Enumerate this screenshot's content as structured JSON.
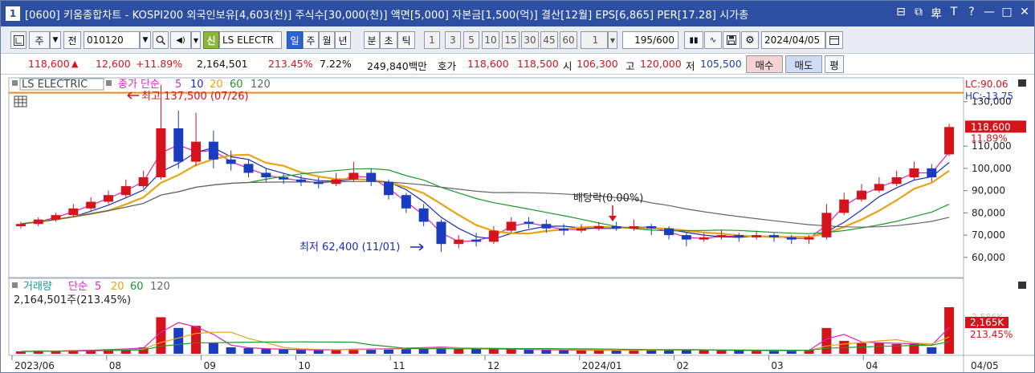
{
  "window": {
    "number": "1",
    "title": "[0600] 키움종합차트 - KOSPI200 외국인보유[4,603(천)] 주식수[30,000(천)] 액면[5,000] 자본금[1,500(억)] 결산[12월] EPS[6,865] PER[17.28] 시가총",
    "buttons": [
      "⊟",
      "⧉",
      "卑",
      "T",
      "?",
      "—",
      "□",
      "✕"
    ]
  },
  "toolbar": {
    "period_label": "주",
    "prev_label": "전",
    "code": "010120",
    "badge": "신",
    "stock_name": "LS ELECTR",
    "period_buttons": [
      "일",
      "주",
      "월",
      "년",
      "분",
      "초",
      "틱"
    ],
    "selected_period": "일",
    "interval_buttons": [
      "1",
      "3",
      "5",
      "10",
      "15",
      "30",
      "45",
      "60"
    ],
    "interval_value": "1",
    "count": "195/600",
    "date": "2024/04/05"
  },
  "quote": {
    "price": "118,600",
    "change": "12,600",
    "change_pct": "+11.89%",
    "volume": "2,164,501",
    "volume_ratio": "213.45%",
    "turnover": "7.22%",
    "amount": "249,840백만",
    "ask_label": "호가",
    "ask": "118,600",
    "bid": "118,500",
    "open_label": "시",
    "open": "106,300",
    "high_label": "고",
    "high": "120,000",
    "low_label": "저",
    "low": "105,500",
    "buy_label": "매수",
    "sell_label": "매도",
    "eval_label": "평"
  },
  "price_panel": {
    "stock_label": "LS ELECTRIC",
    "ma_title": "종가 단순",
    "ma_periods": [
      "5",
      "10",
      "20",
      "60",
      "120"
    ],
    "high_note": "최고 137,500 (07/26)",
    "low_note": "최저 62,400 (11/01)",
    "dividend_note": "배당락(0.00%)",
    "lc": "LC:90.06",
    "hc": "HC:-13.75",
    "last_price_tag": "118,600",
    "last_pct_tag": "11.89%"
  },
  "volume_panel": {
    "title": "거래량",
    "ma_title": "단순",
    "ma_periods": [
      "5",
      "20",
      "60",
      "120"
    ],
    "last_volume": "2,164,501주(213.45%)",
    "last_volume_tag": "2,165K",
    "last_pct_tag": "213.45%",
    "axis_label": "2,586K"
  },
  "colors": {
    "up": "#d4141a",
    "down": "#1a3cbf",
    "ma5": "#e020c0",
    "ma10": "#1c2fb0",
    "ma20": "#e8a415",
    "ma60": "#1a9a2a",
    "ma120": "#666666",
    "resistance": "#f08a1c"
  },
  "chart_data": {
    "type": "candlestick",
    "x_ticks": [
      "2023/06",
      "08",
      "09",
      "10",
      "11",
      "12",
      "2024/01",
      "02",
      "03",
      "04"
    ],
    "right_tick": "04/05",
    "y_ticks": [
      130000,
      110000,
      100000,
      90000,
      80000,
      70000,
      60000
    ],
    "y_tick_labels": [
      "130,000",
      "110,000",
      "100,000",
      "90,000",
      "80,000",
      "70,000",
      "60,000"
    ],
    "ylim": [
      52000,
      140000
    ],
    "resistance_level": 134000,
    "weeks": [
      {
        "o": 74000,
        "c": 75000,
        "h": 76000,
        "l": 73000,
        "v": 110
      },
      {
        "o": 75000,
        "c": 77000,
        "h": 78000,
        "l": 74000,
        "v": 120
      },
      {
        "o": 77000,
        "c": 79000,
        "h": 80000,
        "l": 76000,
        "v": 130
      },
      {
        "o": 79000,
        "c": 82000,
        "h": 84000,
        "l": 78000,
        "v": 160
      },
      {
        "o": 82000,
        "c": 85000,
        "h": 87000,
        "l": 81000,
        "v": 170
      },
      {
        "o": 85000,
        "c": 88000,
        "h": 90000,
        "l": 84000,
        "v": 210
      },
      {
        "o": 88000,
        "c": 92000,
        "h": 95000,
        "l": 87000,
        "v": 240
      },
      {
        "o": 92000,
        "c": 96000,
        "h": 99000,
        "l": 91000,
        "v": 300
      },
      {
        "o": 96000,
        "c": 118000,
        "h": 137500,
        "l": 95000,
        "v": 1700
      },
      {
        "o": 118000,
        "c": 103000,
        "h": 126000,
        "l": 100000,
        "v": 1200
      },
      {
        "o": 103000,
        "c": 112000,
        "h": 125000,
        "l": 101000,
        "v": 1300
      },
      {
        "o": 112000,
        "c": 104000,
        "h": 117000,
        "l": 100000,
        "v": 500
      },
      {
        "o": 104000,
        "c": 102000,
        "h": 108000,
        "l": 99000,
        "v": 300
      },
      {
        "o": 102000,
        "c": 98000,
        "h": 104000,
        "l": 96000,
        "v": 260
      },
      {
        "o": 98000,
        "c": 96000,
        "h": 100000,
        "l": 94000,
        "v": 220
      },
      {
        "o": 96000,
        "c": 95000,
        "h": 98000,
        "l": 93000,
        "v": 200
      },
      {
        "o": 95000,
        "c": 94000,
        "h": 97000,
        "l": 92000,
        "v": 180
      },
      {
        "o": 94000,
        "c": 93000,
        "h": 96000,
        "l": 91000,
        "v": 170
      },
      {
        "o": 93000,
        "c": 95000,
        "h": 98000,
        "l": 92000,
        "v": 190
      },
      {
        "o": 95000,
        "c": 98000,
        "h": 103000,
        "l": 94000,
        "v": 230
      },
      {
        "o": 98000,
        "c": 94000,
        "h": 100000,
        "l": 92000,
        "v": 210
      },
      {
        "o": 94000,
        "c": 88000,
        "h": 95000,
        "l": 86000,
        "v": 250
      },
      {
        "o": 88000,
        "c": 82000,
        "h": 89000,
        "l": 80000,
        "v": 270
      },
      {
        "o": 82000,
        "c": 76000,
        "h": 84000,
        "l": 74000,
        "v": 300
      },
      {
        "o": 76000,
        "c": 66000,
        "h": 77000,
        "l": 62400,
        "v": 320
      },
      {
        "o": 66000,
        "c": 68000,
        "h": 70000,
        "l": 64000,
        "v": 240
      },
      {
        "o": 68000,
        "c": 67000,
        "h": 71000,
        "l": 65000,
        "v": 220
      },
      {
        "o": 67000,
        "c": 72000,
        "h": 74000,
        "l": 66000,
        "v": 230
      },
      {
        "o": 72000,
        "c": 76000,
        "h": 78000,
        "l": 71000,
        "v": 210
      },
      {
        "o": 76000,
        "c": 75000,
        "h": 78000,
        "l": 73000,
        "v": 190
      },
      {
        "o": 75000,
        "c": 73000,
        "h": 77000,
        "l": 71000,
        "v": 180
      },
      {
        "o": 73000,
        "c": 72000,
        "h": 75000,
        "l": 70000,
        "v": 170
      },
      {
        "o": 72000,
        "c": 73000,
        "h": 75000,
        "l": 71000,
        "v": 160
      },
      {
        "o": 73000,
        "c": 74000,
        "h": 76000,
        "l": 72000,
        "v": 170
      },
      {
        "o": 74000,
        "c": 73000,
        "h": 76000,
        "l": 72000,
        "v": 160
      },
      {
        "o": 73000,
        "c": 74000,
        "h": 77000,
        "l": 72000,
        "v": 170
      },
      {
        "o": 74000,
        "c": 73000,
        "h": 75000,
        "l": 70000,
        "v": 180
      },
      {
        "o": 73000,
        "c": 70000,
        "h": 74000,
        "l": 68000,
        "v": 190
      },
      {
        "o": 70000,
        "c": 68000,
        "h": 71000,
        "l": 65000,
        "v": 200
      },
      {
        "o": 68000,
        "c": 69000,
        "h": 71000,
        "l": 67000,
        "v": 170
      },
      {
        "o": 69000,
        "c": 70000,
        "h": 72000,
        "l": 68000,
        "v": 160
      },
      {
        "o": 70000,
        "c": 69000,
        "h": 71000,
        "l": 67000,
        "v": 150
      },
      {
        "o": 69000,
        "c": 70000,
        "h": 72000,
        "l": 68000,
        "v": 150
      },
      {
        "o": 70000,
        "c": 69000,
        "h": 71000,
        "l": 67000,
        "v": 140
      },
      {
        "o": 69000,
        "c": 68000,
        "h": 70000,
        "l": 66000,
        "v": 150
      },
      {
        "o": 68000,
        "c": 69000,
        "h": 70000,
        "l": 66000,
        "v": 170
      },
      {
        "o": 69000,
        "c": 80000,
        "h": 84000,
        "l": 68000,
        "v": 1200
      },
      {
        "o": 80000,
        "c": 86000,
        "h": 89000,
        "l": 79000,
        "v": 600
      },
      {
        "o": 86000,
        "c": 90000,
        "h": 93000,
        "l": 85000,
        "v": 500
      },
      {
        "o": 90000,
        "c": 93000,
        "h": 96000,
        "l": 89000,
        "v": 520
      },
      {
        "o": 93000,
        "c": 96000,
        "h": 99000,
        "l": 92000,
        "v": 450
      },
      {
        "o": 96000,
        "c": 100000,
        "h": 103000,
        "l": 95000,
        "v": 480
      },
      {
        "o": 100000,
        "c": 96000,
        "h": 102000,
        "l": 94000,
        "v": 300
      },
      {
        "o": 106300,
        "c": 118600,
        "h": 120000,
        "l": 105500,
        "v": 2165
      }
    ]
  }
}
